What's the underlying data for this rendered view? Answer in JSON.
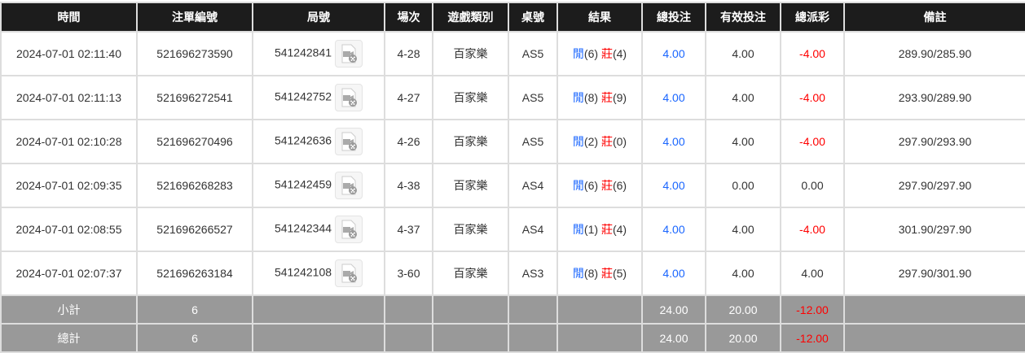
{
  "headers": [
    "時間",
    "注單編號",
    "局號",
    "場次",
    "遊戲類別",
    "桌號",
    "結果",
    "總投注",
    "有效投注",
    "總派彩",
    "備註"
  ],
  "rows": [
    {
      "time": "2024-07-01 02:11:40",
      "bet_id": "521696273590",
      "round": "541242841",
      "session": "4-28",
      "game": "百家樂",
      "table": "AS5",
      "player": "閒",
      "player_pts": "(6)",
      "banker": "莊",
      "banker_pts": "(4)",
      "total_bet": "4.00",
      "valid_bet": "4.00",
      "payout": "-4.00",
      "payout_neg": true,
      "note": "289.90/285.90"
    },
    {
      "time": "2024-07-01 02:11:13",
      "bet_id": "521696272541",
      "round": "541242752",
      "session": "4-27",
      "game": "百家樂",
      "table": "AS5",
      "player": "閒",
      "player_pts": "(8)",
      "banker": "莊",
      "banker_pts": "(9)",
      "total_bet": "4.00",
      "valid_bet": "4.00",
      "payout": "-4.00",
      "payout_neg": true,
      "note": "293.90/289.90"
    },
    {
      "time": "2024-07-01 02:10:28",
      "bet_id": "521696270496",
      "round": "541242636",
      "session": "4-26",
      "game": "百家樂",
      "table": "AS5",
      "player": "閒",
      "player_pts": "(2)",
      "banker": "莊",
      "banker_pts": "(0)",
      "total_bet": "4.00",
      "valid_bet": "4.00",
      "payout": "-4.00",
      "payout_neg": true,
      "note": "297.90/293.90"
    },
    {
      "time": "2024-07-01 02:09:35",
      "bet_id": "521696268283",
      "round": "541242459",
      "session": "4-38",
      "game": "百家樂",
      "table": "AS4",
      "player": "閒",
      "player_pts": "(6)",
      "banker": "莊",
      "banker_pts": "(6)",
      "total_bet": "4.00",
      "valid_bet": "0.00",
      "payout": "0.00",
      "payout_neg": false,
      "note": "297.90/297.90"
    },
    {
      "time": "2024-07-01 02:08:55",
      "bet_id": "521696266527",
      "round": "541242344",
      "session": "4-37",
      "game": "百家樂",
      "table": "AS4",
      "player": "閒",
      "player_pts": "(1)",
      "banker": "莊",
      "banker_pts": "(4)",
      "total_bet": "4.00",
      "valid_bet": "4.00",
      "payout": "-4.00",
      "payout_neg": true,
      "note": "301.90/297.90"
    },
    {
      "time": "2024-07-01 02:07:37",
      "bet_id": "521696263184",
      "round": "541242108",
      "session": "3-60",
      "game": "百家樂",
      "table": "AS3",
      "player": "閒",
      "player_pts": "(8)",
      "banker": "莊",
      "banker_pts": "(5)",
      "total_bet": "4.00",
      "valid_bet": "4.00",
      "payout": "4.00",
      "payout_neg": false,
      "note": "297.90/301.90"
    }
  ],
  "subtotal": {
    "label": "小計",
    "count": "6",
    "total_bet": "24.00",
    "valid_bet": "20.00",
    "payout": "-12.00"
  },
  "grandtotal": {
    "label": "總計",
    "count": "6",
    "total_bet": "24.00",
    "valid_bet": "20.00",
    "payout": "-12.00"
  },
  "colors": {
    "header_bg": "#1c1c1c",
    "blue": "#1a66ff",
    "red": "#ff0000",
    "footer_bg": "#999999"
  }
}
